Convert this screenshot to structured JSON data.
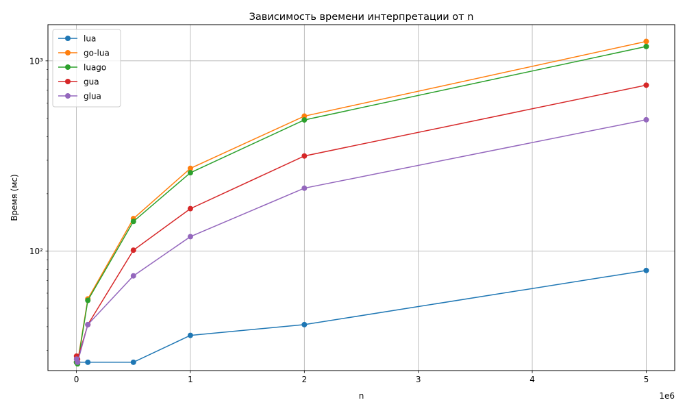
{
  "chart_data": {
    "type": "line",
    "title": "Зависимость времени интерпретации от n",
    "xlabel": "n",
    "ylabel": "Время (мс)",
    "x_offset_label": "1e6",
    "x_scale": "linear",
    "y_scale": "log",
    "xlim": [
      -250000,
      5250000
    ],
    "ylim": [
      23.5,
      1550
    ],
    "x_ticks": [
      0,
      1000000,
      2000000,
      3000000,
      4000000,
      5000000
    ],
    "x_tick_labels": [
      "0",
      "1",
      "2",
      "3",
      "4",
      "5"
    ],
    "y_ticks": [
      100,
      1000
    ],
    "y_tick_labels": [
      "10²",
      "10³"
    ],
    "grid": true,
    "legend_position": "top-left",
    "x": [
      1000,
      10000,
      100000,
      500000,
      1000000,
      2000000,
      5000000
    ],
    "series": [
      {
        "name": "lua",
        "color": "#1f77b4",
        "values": [
          26,
          26,
          26,
          26,
          36,
          41,
          79
        ]
      },
      {
        "name": "go-lua",
        "color": "#ff7f0e",
        "values": [
          26,
          26,
          56,
          148,
          272,
          512,
          1265
        ]
      },
      {
        "name": "luago",
        "color": "#2ca02c",
        "values": [
          26,
          25.5,
          55,
          143,
          258,
          489,
          1190
        ]
      },
      {
        "name": "gua",
        "color": "#d62728",
        "values": [
          28,
          27,
          41,
          101,
          167,
          316,
          745
        ]
      },
      {
        "name": "glua",
        "color": "#9467bd",
        "values": [
          27,
          26,
          41,
          74,
          119,
          214,
          490
        ]
      }
    ]
  }
}
